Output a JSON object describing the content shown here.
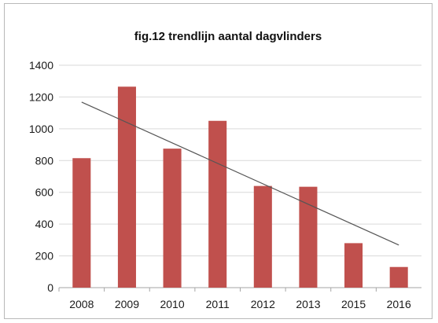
{
  "chart_data": {
    "type": "bar",
    "title": "fig.12 trendlijn aantal dagvlinders",
    "categories": [
      "2008",
      "2009",
      "2010",
      "2011",
      "2012",
      "2013",
      "2015",
      "2016"
    ],
    "values": [
      815,
      1265,
      875,
      1050,
      640,
      635,
      280,
      130
    ],
    "ylim": [
      0,
      1400
    ],
    "yticks": [
      0,
      200,
      400,
      600,
      800,
      1000,
      1200,
      1400
    ],
    "ytick_labels": [
      "0",
      "200",
      "400",
      "600",
      "800",
      "1000",
      "1200",
      "1400"
    ],
    "gridlines": true,
    "legend": false,
    "bar_color": "#c0504d",
    "trendline": {
      "type": "linear",
      "start_value": 1168,
      "end_value": 268,
      "color": "#555555"
    }
  }
}
